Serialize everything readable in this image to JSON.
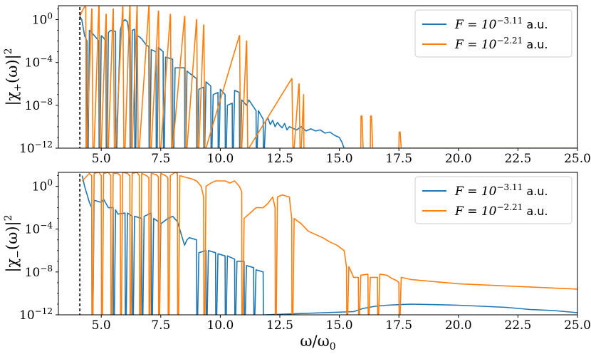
{
  "chart_data": [
    {
      "type": "line",
      "title": "",
      "xlabel": "",
      "ylabel": "|χ+(ω)|²",
      "ylabel_main": "|χ",
      "ylabel_sub": "+",
      "ylabel_end": "(ω)|",
      "ylabel_sup": "2",
      "xlim": [
        3.2,
        25.0
      ],
      "ylim_log10": [
        -12,
        1.3
      ],
      "y_scale": "log",
      "x_ticks": [
        "5.0",
        "7.5",
        "10.0",
        "12.5",
        "15.0",
        "17.5",
        "20.0",
        "22.5",
        "25.0"
      ],
      "x_tick_values": [
        5.0,
        7.5,
        10.0,
        12.5,
        15.0,
        17.5,
        20.0,
        22.5,
        25.0
      ],
      "y_ticks": [
        {
          "value_log10": 0,
          "base": "10",
          "exp": "0"
        },
        {
          "value_log10": -4,
          "base": "10",
          "exp": "−4"
        },
        {
          "value_log10": -8,
          "base": "10",
          "exp": "−8"
        },
        {
          "value_log10": -12,
          "base": "10",
          "exp": "−12"
        }
      ],
      "threshold_x": 4.1,
      "legend_position": "upper-right",
      "series": [
        {
          "name": "F = 10^−3.11 a.u.",
          "label_prefix": "F = 10",
          "label_exp": "−3.11",
          "label_unit": "a.u.",
          "color": "#1f77b4",
          "x": [
            4.1,
            4.18,
            4.3,
            4.4,
            4.41,
            4.45,
            4.5,
            4.6,
            4.9,
            4.91,
            4.95,
            5.0,
            5.1,
            5.2,
            5.21,
            5.25,
            5.3,
            5.4,
            5.6,
            5.61,
            5.65,
            5.8,
            5.9,
            6.0,
            6.1,
            6.15,
            6.2,
            6.21,
            6.25,
            6.3,
            6.4,
            6.41,
            6.45,
            6.5,
            6.6,
            6.7,
            6.9,
            7.0,
            7.01,
            7.05,
            7.1,
            7.3,
            7.31,
            7.35,
            7.4,
            7.6,
            7.61,
            7.65,
            7.7,
            8.0,
            8.01,
            8.05,
            8.1,
            8.5,
            8.51,
            8.55,
            8.6,
            8.7,
            9.0,
            9.01,
            9.05,
            9.1,
            9.3,
            9.31,
            9.35,
            9.4,
            9.6,
            9.61,
            9.65,
            9.7,
            9.9,
            9.91,
            9.95,
            10.0,
            10.2,
            10.21,
            10.25,
            10.3,
            10.5,
            10.51,
            10.55,
            10.6,
            10.8,
            10.81,
            10.85,
            10.9,
            11.1,
            11.2,
            11.5,
            11.51,
            11.55,
            11.6,
            11.8,
            11.81,
            11.85,
            11.9,
            12.0,
            12.1,
            12.2,
            12.3,
            12.4,
            12.5,
            12.6,
            12.7,
            12.8,
            12.9,
            13.0,
            13.2,
            13.4,
            13.6,
            13.8,
            14.0,
            14.2,
            14.4,
            14.6,
            14.8,
            15.0,
            15.1,
            15.2
          ],
          "y_log10": [
            0.3,
            0.0,
            -1.5,
            -2.0,
            -12,
            -12,
            -1.0,
            -1.2,
            -2.0,
            -12,
            -12,
            -1.5,
            -1.7,
            -2.0,
            -12,
            -12,
            -1.2,
            -1.0,
            -1.1,
            -12,
            -12,
            -1.0,
            -0.2,
            0.0,
            -0.2,
            -1.0,
            -2.5,
            -12,
            -12,
            -1.0,
            -0.9,
            -12,
            -12,
            -1.5,
            -1.6,
            -1.8,
            -2.4,
            -2.5,
            -12,
            -12,
            -2.8,
            -3.0,
            -12,
            -12,
            -2.6,
            -3.0,
            -12,
            -12,
            -3.5,
            -3.7,
            -12,
            -12,
            -4.5,
            -4.5,
            -12,
            -12,
            -4.8,
            -5.0,
            -5.5,
            -12,
            -12,
            -6.5,
            -6.3,
            -12,
            -12,
            -5.8,
            -6.2,
            -12,
            -12,
            -7.0,
            -6.8,
            -12,
            -12,
            -6.5,
            -7.0,
            -12,
            -12,
            -8.0,
            -7.8,
            -12,
            -12,
            -6.6,
            -6.8,
            -12,
            -12,
            -7.5,
            -8.0,
            -7.5,
            -8.5,
            -12,
            -12,
            -8.5,
            -9.3,
            -12,
            -12,
            -9.5,
            -9.2,
            -9.8,
            -9.4,
            -10.0,
            -9.6,
            -9.9,
            -10.1,
            -9.7,
            -10.3,
            -10.0,
            -10.1,
            -10.3,
            -10.0,
            -10.4,
            -10.2,
            -10.4,
            -10.3,
            -10.6,
            -10.5,
            -10.8,
            -11.0,
            -11.4,
            -12.0
          ]
        },
        {
          "name": "F = 10^−2.21 a.u.",
          "label_prefix": "F = 10",
          "label_exp": "−2.21",
          "label_unit": "a.u.",
          "color": "#ff7f0e",
          "x": [
            4.1,
            4.2,
            4.3,
            4.35,
            4.36,
            4.4,
            4.6,
            4.61,
            4.65,
            4.7,
            4.9,
            4.91,
            4.95,
            5.0,
            5.2,
            5.21,
            5.25,
            5.3,
            5.5,
            5.51,
            5.55,
            5.6,
            5.9,
            5.91,
            5.95,
            6.0,
            6.2,
            6.21,
            6.25,
            6.3,
            6.5,
            6.51,
            6.55,
            6.6,
            7.0,
            7.01,
            7.05,
            7.1,
            7.4,
            7.41,
            7.45,
            7.5,
            7.9,
            7.91,
            7.95,
            8.0,
            8.5,
            8.51,
            8.55,
            8.6,
            9.0,
            9.01,
            9.05,
            9.1,
            9.3,
            9.31,
            9.35,
            9.4,
            10.8,
            10.81,
            10.85,
            10.9,
            11.1,
            11.11,
            11.15,
            11.2,
            13.0,
            13.01,
            13.05,
            13.1,
            13.3,
            13.31,
            13.35,
            13.4,
            13.5,
            13.51,
            15.9,
            15.91,
            15.95,
            16.0,
            16.3,
            16.31,
            16.35,
            16.4,
            17.5,
            17.51,
            17.55,
            17.6,
            25.0
          ],
          "y_log10": [
            0.3,
            0.8,
            1.2,
            1.2,
            -12,
            -12,
            1.0,
            1.0,
            -12,
            -12,
            1.3,
            1.3,
            -12,
            -12,
            0.5,
            0.5,
            -12,
            -12,
            1.0,
            1.0,
            -12,
            -12,
            1.2,
            1.2,
            -12,
            -12,
            1.3,
            1.3,
            -12,
            -12,
            1.2,
            1.2,
            -12,
            -12,
            1.3,
            1.3,
            -12,
            -12,
            0.8,
            0.8,
            -12,
            -12,
            0.5,
            0.5,
            -12,
            -12,
            0.3,
            0.3,
            -12,
            -12,
            0.0,
            0.0,
            -12,
            -12,
            -0.5,
            -0.5,
            -12,
            -12,
            -1.5,
            -1.5,
            -12,
            -12,
            -2.0,
            -2.0,
            -12,
            -12,
            -5.5,
            -5.5,
            -12,
            -12,
            -6.0,
            -6.0,
            -12,
            -12,
            -7.0,
            -12,
            -12,
            -9.0,
            -9.0,
            -12,
            -12,
            -9.0,
            -9.0,
            -12,
            -12,
            -10.5,
            -10.5,
            -12,
            -12
          ]
        }
      ]
    },
    {
      "type": "line",
      "title": "",
      "xlabel": "ω/ω0",
      "xlabel_main": "ω/ω",
      "xlabel_sub": "0",
      "ylabel": "|χ−(ω)|²",
      "ylabel_main": "|χ",
      "ylabel_sub": "−",
      "ylabel_end": "(ω)|",
      "ylabel_sup": "2",
      "xlim": [
        3.2,
        25.0
      ],
      "ylim_log10": [
        -12,
        1.3
      ],
      "y_scale": "log",
      "x_ticks": [
        "5.0",
        "7.5",
        "10.0",
        "12.5",
        "15.0",
        "17.5",
        "20.0",
        "22.5",
        "25.0"
      ],
      "x_tick_values": [
        5.0,
        7.5,
        10.0,
        12.5,
        15.0,
        17.5,
        20.0,
        22.5,
        25.0
      ],
      "y_ticks": [
        {
          "value_log10": 0,
          "base": "10",
          "exp": "0"
        },
        {
          "value_log10": -4,
          "base": "10",
          "exp": "−4"
        },
        {
          "value_log10": -8,
          "base": "10",
          "exp": "−8"
        },
        {
          "value_log10": -12,
          "base": "10",
          "exp": "−12"
        }
      ],
      "threshold_x": 4.1,
      "legend_position": "upper-right",
      "series": [
        {
          "name": "F = 10^−3.11 a.u.",
          "label_prefix": "F = 10",
          "label_exp": "−3.11",
          "label_unit": "a.u.",
          "color": "#1f77b4",
          "x": [
            4.2,
            4.3,
            4.5,
            4.6,
            4.61,
            4.65,
            4.7,
            5.0,
            5.1,
            5.3,
            5.5,
            5.51,
            5.55,
            5.6,
            5.7,
            6.0,
            6.01,
            6.05,
            6.1,
            6.3,
            6.31,
            6.35,
            6.4,
            6.7,
            6.71,
            6.75,
            6.8,
            7.1,
            7.11,
            7.15,
            7.2,
            7.4,
            7.41,
            7.45,
            7.5,
            7.8,
            8.0,
            8.2,
            8.5,
            8.6,
            8.7,
            9.0,
            9.01,
            9.05,
            9.1,
            9.4,
            9.41,
            9.45,
            9.5,
            9.8,
            9.81,
            9.85,
            9.9,
            10.2,
            10.21,
            10.25,
            10.3,
            10.6,
            10.61,
            10.65,
            10.7,
            11.0,
            11.01,
            11.05,
            11.1,
            11.4,
            11.41,
            11.45,
            11.5,
            11.8,
            11.81,
            11.85,
            11.9,
            15.6,
            16.0,
            16.5,
            17.0,
            17.5,
            18.0,
            19.0,
            20.0,
            21.0,
            22.0,
            23.0,
            24.0,
            25.0
          ],
          "y_log10": [
            1.0,
            0.0,
            -1.5,
            -2.0,
            -12,
            -12,
            -1.3,
            -1.5,
            -1.2,
            -2.0,
            -2.0,
            -12,
            -12,
            -2.2,
            -2.6,
            -2.5,
            -12,
            -12,
            -2.5,
            -2.8,
            -12,
            -12,
            -2.8,
            -3.0,
            -12,
            -12,
            -2.8,
            -2.5,
            -12,
            -12,
            -3.0,
            -3.3,
            -12,
            -12,
            -3.5,
            -3.0,
            -2.8,
            -3.3,
            -5.5,
            -5.0,
            -4.8,
            -5.0,
            -12,
            -12,
            -6.2,
            -6.0,
            -12,
            -12,
            -6.0,
            -6.2,
            -12,
            -12,
            -6.3,
            -6.5,
            -12,
            -12,
            -6.5,
            -6.8,
            -12,
            -12,
            -7.0,
            -7.0,
            -12,
            -12,
            -7.4,
            -7.6,
            -12,
            -12,
            -7.8,
            -8.0,
            -12,
            -12,
            -12,
            -11.7,
            -11.4,
            -11.2,
            -11.1,
            -11.05,
            -11.0,
            -11.05,
            -11.1,
            -11.2,
            -11.3,
            -11.5,
            -11.6,
            -11.8
          ]
        },
        {
          "name": "F = 10^−2.21 a.u.",
          "label_prefix": "F = 10",
          "label_exp": "−2.21",
          "label_unit": "a.u.",
          "color": "#ff7f0e",
          "x": [
            4.2,
            4.5,
            4.6,
            4.61,
            4.65,
            4.7,
            4.9,
            5.0,
            5.01,
            5.05,
            5.1,
            5.3,
            5.4,
            5.41,
            5.45,
            5.5,
            5.7,
            5.8,
            5.81,
            5.85,
            5.9,
            6.1,
            6.2,
            6.21,
            6.25,
            6.3,
            6.5,
            6.6,
            6.61,
            6.65,
            6.7,
            6.9,
            7.0,
            7.01,
            7.05,
            7.1,
            7.3,
            7.4,
            7.41,
            7.45,
            7.5,
            7.7,
            7.8,
            7.81,
            7.85,
            7.9,
            8.1,
            8.2,
            8.21,
            8.25,
            8.3,
            8.6,
            8.8,
            9.0,
            9.2,
            9.3,
            9.31,
            9.35,
            9.4,
            9.6,
            9.8,
            10.0,
            10.2,
            10.4,
            10.6,
            10.8,
            10.9,
            10.91,
            10.95,
            11.0,
            11.5,
            11.8,
            12.0,
            12.2,
            12.3,
            12.31,
            12.35,
            12.4,
            12.6,
            12.9,
            12.95,
            13.0,
            13.01,
            13.05,
            13.1,
            13.4,
            13.7,
            14.0,
            14.3,
            14.6,
            14.9,
            15.2,
            15.3,
            15.31,
            15.35,
            15.4,
            15.6,
            15.8,
            15.81,
            15.85,
            15.9,
            16.2,
            16.21,
            16.25,
            16.3,
            16.6,
            16.61,
            16.65,
            16.7,
            17.0,
            17.2,
            17.4,
            17.5,
            17.51,
            17.55,
            17.6,
            17.8,
            18.0,
            18.5,
            19.0,
            19.5,
            20.0,
            21.0,
            22.0,
            23.0,
            24.0,
            25.0
          ],
          "y_log10": [
            0.5,
            1.2,
            1.0,
            -12,
            -12,
            1.2,
            1.3,
            1.0,
            -12,
            -12,
            1.2,
            1.3,
            1.0,
            -12,
            -12,
            1.2,
            1.2,
            1.0,
            -12,
            -12,
            1.3,
            1.2,
            1.0,
            -12,
            -12,
            1.2,
            1.3,
            1.0,
            -12,
            -12,
            1.2,
            1.0,
            0.8,
            -12,
            -12,
            1.2,
            1.1,
            0.9,
            -12,
            -12,
            1.2,
            1.0,
            0.8,
            -12,
            -12,
            1.0,
            1.3,
            1.2,
            -12,
            -12,
            1.0,
            0.8,
            0.7,
            0.5,
            0.0,
            -1.0,
            -12,
            -12,
            0.0,
            0.3,
            0.5,
            0.5,
            0.5,
            0.3,
            0.5,
            0.0,
            -0.5,
            -12,
            -12,
            -3.0,
            -2.0,
            -2.0,
            -1.6,
            -1.0,
            -2.0,
            -12,
            -12,
            -1.0,
            -0.8,
            -1.0,
            -2.0,
            -3.0,
            -12,
            -12,
            -3.0,
            -3.5,
            -4.2,
            -4.5,
            -4.8,
            -5.2,
            -5.5,
            -6.0,
            -7.5,
            -12,
            -12,
            -7.5,
            -8.5,
            -8.5,
            -12,
            -12,
            -8.3,
            -8.2,
            -12,
            -12,
            -8.5,
            -8.5,
            -12,
            -12,
            -8.2,
            -8.3,
            -8.6,
            -8.8,
            -9.0,
            -12,
            -12,
            -8.5,
            -8.6,
            -8.7,
            -8.8,
            -8.9,
            -9.0,
            -9.1,
            -9.2,
            -9.3,
            -9.4,
            -9.5,
            -9.6
          ]
        }
      ]
    }
  ]
}
